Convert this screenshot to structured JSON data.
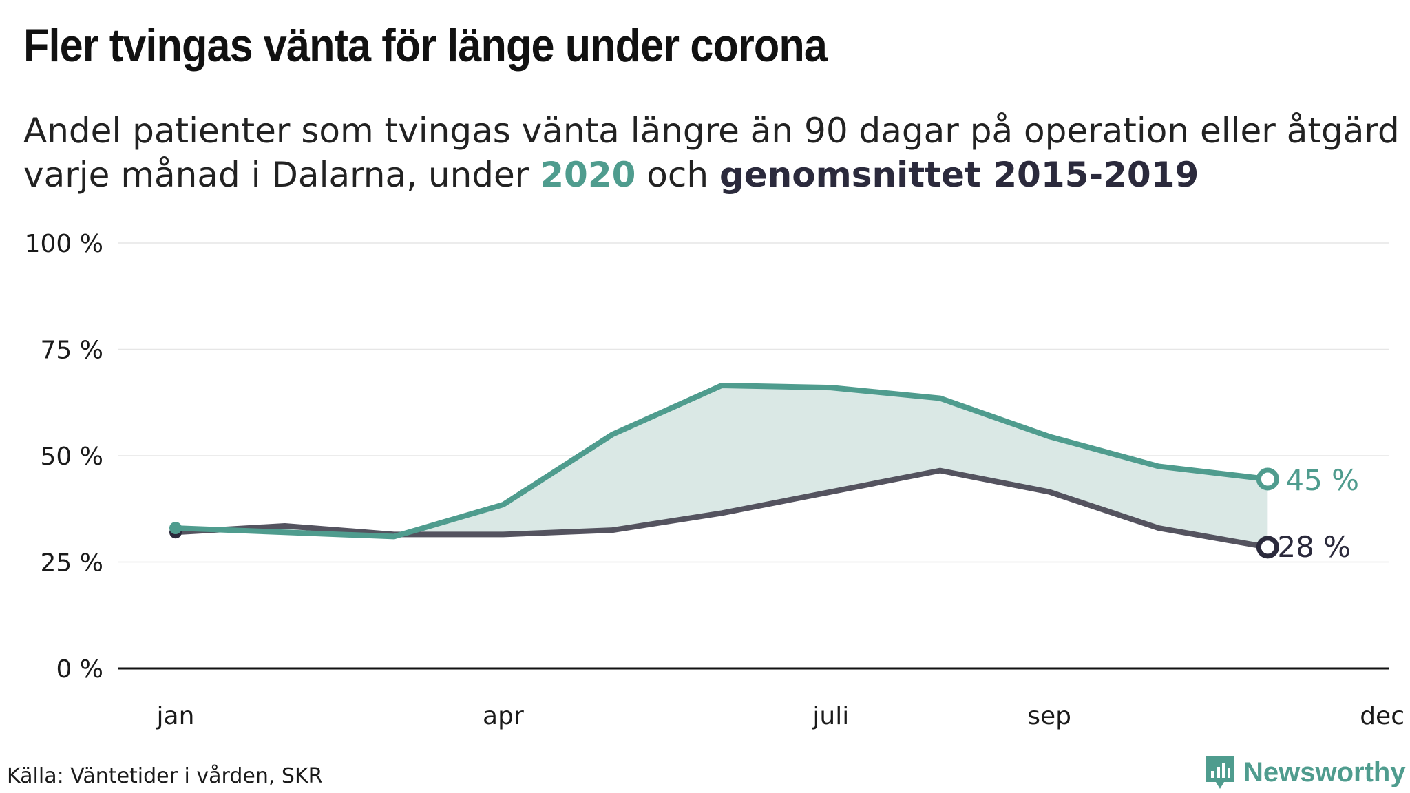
{
  "title": "Fler tvingas vänta för länge under corona",
  "subtitle": {
    "line1": "Andel patienter som tvingas vänta längre än 90 dagar på operation eller åtgärd",
    "line2_prefix": "varje månad i Dalarna, under ",
    "highlight_2020": "2020",
    "line2_mid": " och ",
    "highlight_avg": "genomsnittet 2015-2019"
  },
  "source": "Källa: Väntetider i vården, SKR",
  "brand": {
    "name": "Newsworthy",
    "icon": "bar-chart-icon"
  },
  "colors": {
    "series_2020": "#4f9c8e",
    "series_avg": "#54535f",
    "end_avg": "#2b2a3c",
    "fill": "#dae8e5",
    "grid": "#e6e6e6",
    "axis": "#111111"
  },
  "chart_data": {
    "type": "line",
    "y_tick_labels": [
      "0 %",
      "25 %",
      "50 %",
      "75 %",
      "100 %"
    ],
    "y_ticks": [
      0,
      25,
      50,
      75,
      100
    ],
    "ylim": [
      0,
      100
    ],
    "x_tick_labels": [
      "jan",
      "apr",
      "juli",
      "sep",
      "dec"
    ],
    "x_ticks": [
      1,
      4,
      7,
      9,
      12
    ],
    "xlim": [
      1,
      12
    ],
    "grid": true,
    "series": [
      {
        "key": "avg",
        "x": [
          1,
          2,
          3,
          4,
          5,
          6,
          7,
          8,
          9,
          10,
          11
        ],
        "values": [
          32,
          33.5,
          31.5,
          31.5,
          32.5,
          36.5,
          41.5,
          46.5,
          41.5,
          33,
          28.5
        ],
        "end_label": "28 %"
      },
      {
        "key": "2020",
        "x": [
          1,
          2,
          3,
          4,
          5,
          6,
          7,
          8,
          9,
          10,
          11
        ],
        "values": [
          33,
          32,
          31,
          38.5,
          55,
          66.5,
          66,
          63.5,
          54.5,
          47.5,
          44.5
        ],
        "end_label": "45 %"
      }
    ]
  }
}
